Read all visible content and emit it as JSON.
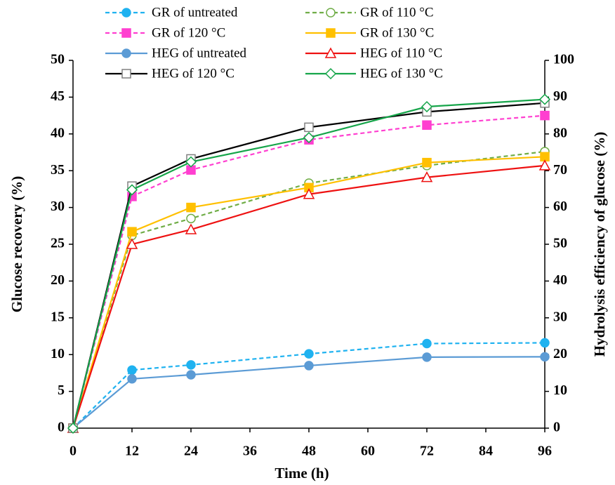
{
  "chart_data": {
    "type": "line",
    "x_label": "Time (h)",
    "y_label": "Glucose recovery (%)",
    "y2_label": "Hydrolysis efficiency of glucose (%)",
    "x": [
      0,
      12,
      24,
      48,
      72,
      96
    ],
    "xlim": [
      0,
      96
    ],
    "xticks": [
      0,
      12,
      24,
      36,
      48,
      60,
      72,
      84,
      96
    ],
    "ylim": [
      0,
      50
    ],
    "yticks": [
      0,
      5,
      10,
      15,
      20,
      25,
      30,
      35,
      40,
      45,
      50
    ],
    "y2lim": [
      0,
      100
    ],
    "y2ticks": [
      0,
      10,
      20,
      30,
      40,
      50,
      60,
      70,
      80,
      90,
      100
    ],
    "series": [
      {
        "name": "GR of untreated",
        "color": "#1fb2f0",
        "marker": "circle",
        "filled": true,
        "dashed": true,
        "values": [
          0,
          7.9,
          8.6,
          10.1,
          11.5,
          11.6
        ]
      },
      {
        "name": "GR of 110 °C",
        "color": "#70ad47",
        "marker": "circle",
        "filled": false,
        "dashed": true,
        "values": [
          0,
          26.2,
          28.5,
          33.3,
          35.7,
          37.6
        ]
      },
      {
        "name": "GR of 120 °C",
        "color": "#ff3fd0",
        "marker": "square",
        "filled": true,
        "dashed": true,
        "values": [
          0,
          31.5,
          35.1,
          39.2,
          41.2,
          42.5
        ]
      },
      {
        "name": "GR of 130 °C",
        "color": "#ffc000",
        "marker": "square",
        "filled": true,
        "dashed": false,
        "values": [
          0,
          26.7,
          30.0,
          32.7,
          36.1,
          36.9
        ]
      },
      {
        "name": "HEG of untreated",
        "color": "#5b9bd5",
        "marker": "circle",
        "filled": true,
        "dashed": false,
        "axis": "y2",
        "values": [
          0,
          13.4,
          14.5,
          17.0,
          19.3,
          19.4
        ]
      },
      {
        "name": "HEG of 110 °C",
        "color": "#ee1111",
        "marker": "triangle",
        "filled": false,
        "dashed": false,
        "axis": "y2",
        "values": [
          0,
          50.0,
          54.0,
          63.6,
          68.2,
          71.4
        ]
      },
      {
        "name": "HEG of 120 °C",
        "color": "#000000",
        "marker": "square",
        "filled": false,
        "marker_color": "#808080",
        "dashed": false,
        "axis": "y2",
        "values": [
          0,
          65.8,
          73.2,
          81.8,
          86.0,
          88.4
        ]
      },
      {
        "name": "HEG of 130 °C",
        "color": "#16a54a",
        "marker": "diamond",
        "filled": false,
        "dashed": false,
        "axis": "y2",
        "values": [
          0,
          64.8,
          72.4,
          79.0,
          87.4,
          89.4
        ]
      }
    ]
  }
}
